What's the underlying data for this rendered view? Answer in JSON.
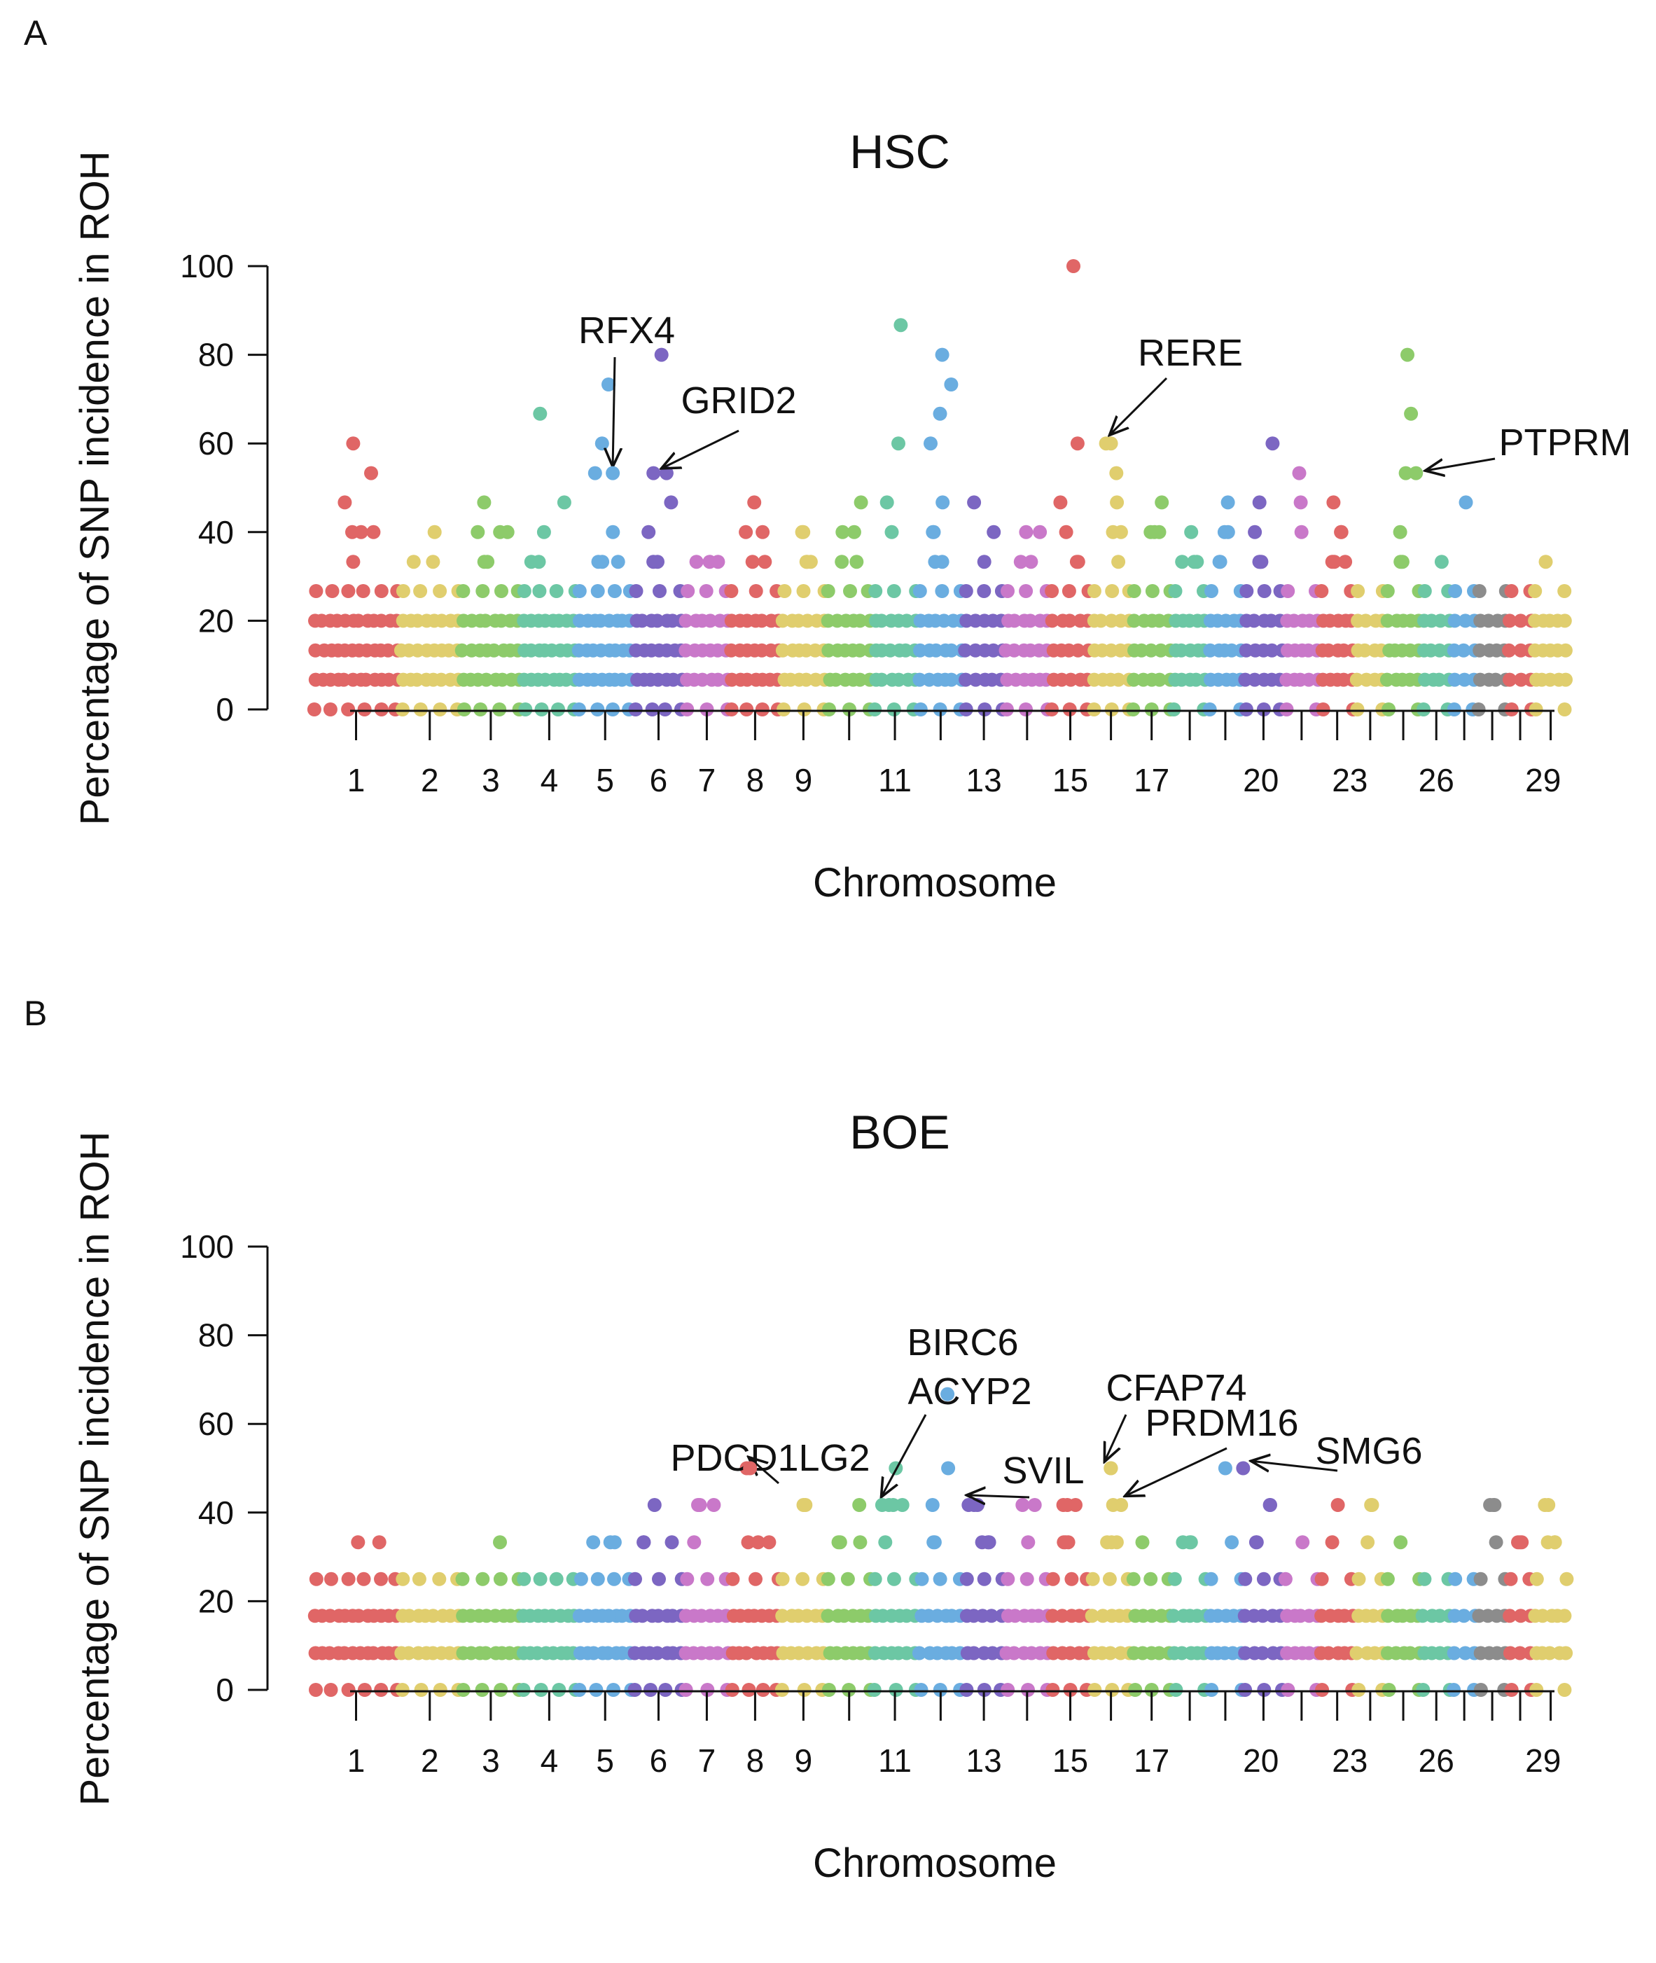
{
  "figure": {
    "panels": [
      "A",
      "B"
    ]
  },
  "chart_data": [
    {
      "type": "scatter",
      "panel": "A",
      "title": "HSC",
      "xlabel": "Chromosome",
      "ylabel": "Percentage of SNP incidence in ROH",
      "ylim": [
        0,
        100
      ],
      "yticks": [
        0,
        20,
        40,
        60,
        80,
        100
      ],
      "xtick_labels": [
        "1",
        "2",
        "3",
        "4",
        "5",
        "6",
        "7",
        "8",
        "9",
        "11",
        "13",
        "15",
        "17",
        "20",
        "23",
        "26",
        "29"
      ],
      "levels": [
        0,
        6.7,
        13.3,
        20,
        26.7
      ],
      "chromosomes": [
        {
          "chr": 1,
          "color": "#E06666",
          "x": [
            0.3,
            2.0
          ],
          "extras": [
            60,
            53.3,
            46.7,
            40,
            33.3
          ]
        },
        {
          "chr": 2,
          "color": "#E0CE6E",
          "x": [
            2.0,
            3.2
          ],
          "extras": [
            40,
            33.3
          ]
        },
        {
          "chr": 3,
          "color": "#8DCB6A",
          "x": [
            3.2,
            4.4
          ],
          "extras": [
            46.7,
            40,
            33.3
          ]
        },
        {
          "chr": 4,
          "color": "#6CC7A4",
          "x": [
            4.4,
            5.5
          ],
          "extras": [
            66.7,
            46.7,
            40,
            33.3
          ]
        },
        {
          "chr": 5,
          "color": "#6AADE0",
          "x": [
            5.5,
            6.6
          ],
          "extras": [
            73.3,
            60,
            53.3,
            40,
            33.3
          ]
        },
        {
          "chr": 6,
          "color": "#7C66C2",
          "x": [
            6.6,
            7.6
          ],
          "extras": [
            80,
            53.3,
            46.7,
            40,
            33.3
          ]
        },
        {
          "chr": 7,
          "color": "#C978C9",
          "x": [
            7.6,
            8.5
          ],
          "extras": [
            33.3
          ]
        },
        {
          "chr": 8,
          "color": "#E06666",
          "x": [
            8.5,
            9.5
          ],
          "extras": [
            46.7,
            40,
            33.3
          ]
        },
        {
          "chr": 9,
          "color": "#E0CE6E",
          "x": [
            9.5,
            10.4
          ],
          "extras": [
            40,
            33.3
          ]
        },
        {
          "chr": 10,
          "color": "#8DCB6A",
          "x": [
            10.4,
            11.3
          ],
          "extras": [
            46.7,
            40,
            33.3
          ]
        },
        {
          "chr": 11,
          "color": "#6CC7A4",
          "x": [
            11.3,
            12.2
          ],
          "extras": [
            86.7,
            60,
            46.7,
            40
          ]
        },
        {
          "chr": 12,
          "color": "#6AADE0",
          "x": [
            12.2,
            13.1
          ],
          "extras": [
            80,
            73.3,
            66.7,
            60,
            46.7,
            40,
            33.3
          ]
        },
        {
          "chr": 13,
          "color": "#7C66C2",
          "x": [
            13.1,
            13.9
          ],
          "extras": [
            46.7,
            40,
            33.3
          ]
        },
        {
          "chr": 14,
          "color": "#C978C9",
          "x": [
            13.9,
            14.8
          ],
          "extras": [
            40,
            33.3
          ]
        },
        {
          "chr": 15,
          "color": "#E06666",
          "x": [
            14.8,
            15.6
          ],
          "extras": [
            100,
            60,
            46.7,
            40,
            33.3
          ]
        },
        {
          "chr": 16,
          "color": "#E0CE6E",
          "x": [
            15.6,
            16.4
          ],
          "extras": [
            60,
            53.3,
            46.7,
            40,
            33.3
          ]
        },
        {
          "chr": 17,
          "color": "#8DCB6A",
          "x": [
            16.4,
            17.2
          ],
          "extras": [
            46.7,
            40
          ]
        },
        {
          "chr": 18,
          "color": "#6CC7A4",
          "x": [
            17.2,
            17.9
          ],
          "extras": [
            40,
            33.3
          ]
        },
        {
          "chr": 19,
          "color": "#6AADE0",
          "x": [
            17.9,
            18.6
          ],
          "extras": [
            46.7,
            40,
            33.3
          ]
        },
        {
          "chr": 20,
          "color": "#7C66C2",
          "x": [
            18.6,
            19.4
          ],
          "extras": [
            60,
            46.7,
            40,
            33.3
          ]
        },
        {
          "chr": 21,
          "color": "#C978C9",
          "x": [
            19.4,
            20.1
          ],
          "extras": [
            53.3,
            46.7,
            40
          ]
        },
        {
          "chr": 22,
          "color": "#E06666",
          "x": [
            20.1,
            20.8
          ],
          "extras": [
            46.7,
            40,
            33.3
          ]
        },
        {
          "chr": 23,
          "color": "#E0CE6E",
          "x": [
            20.8,
            21.4
          ],
          "extras": []
        },
        {
          "chr": 24,
          "color": "#8DCB6A",
          "x": [
            21.4,
            22.1
          ],
          "extras": [
            80,
            66.7,
            53.3,
            40,
            33.3
          ]
        },
        {
          "chr": 25,
          "color": "#6CC7A4",
          "x": [
            22.1,
            22.7
          ],
          "extras": [
            33.3
          ]
        },
        {
          "chr": 26,
          "color": "#6AADE0",
          "x": [
            22.7,
            23.2
          ],
          "extras": [
            46.7
          ]
        },
        {
          "chr": 27,
          "color": "#8C8C8C",
          "x": [
            23.2,
            23.8
          ],
          "extras": []
        },
        {
          "chr": 28,
          "color": "#E06666",
          "x": [
            23.8,
            24.3
          ],
          "extras": []
        },
        {
          "chr": 29,
          "color": "#E0CE6E",
          "x": [
            24.3,
            25.0
          ],
          "extras": [
            33.3
          ]
        }
      ],
      "annotations": [
        {
          "label": "RFX4",
          "x": 6.2,
          "y": 53.3
        },
        {
          "label": "GRID2",
          "x": 7.0,
          "y": 53.3
        },
        {
          "label": "RERE",
          "x": 16.0,
          "y": 60
        },
        {
          "label": "PTPRM",
          "x": 22.0,
          "y": 53.3
        }
      ]
    },
    {
      "type": "scatter",
      "panel": "B",
      "title": "BOE",
      "xlabel": "Chromosome",
      "ylabel": "Percentage of SNP incidence in ROH",
      "ylim": [
        0,
        100
      ],
      "yticks": [
        0,
        20,
        40,
        60,
        80,
        100
      ],
      "xtick_labels": [
        "1",
        "2",
        "3",
        "4",
        "5",
        "6",
        "7",
        "8",
        "9",
        "11",
        "13",
        "15",
        "17",
        "20",
        "23",
        "26",
        "29"
      ],
      "levels": [
        0,
        8.3,
        16.7,
        25
      ],
      "chromosomes": [
        {
          "chr": 1,
          "color": "#E06666",
          "x": [
            0.3,
            2.0
          ],
          "extras": [
            33.3
          ]
        },
        {
          "chr": 2,
          "color": "#E0CE6E",
          "x": [
            2.0,
            3.2
          ],
          "extras": []
        },
        {
          "chr": 3,
          "color": "#8DCB6A",
          "x": [
            3.2,
            4.4
          ],
          "extras": [
            33.3
          ]
        },
        {
          "chr": 4,
          "color": "#6CC7A4",
          "x": [
            4.4,
            5.5
          ],
          "extras": []
        },
        {
          "chr": 5,
          "color": "#6AADE0",
          "x": [
            5.5,
            6.6
          ],
          "extras": [
            33.3
          ]
        },
        {
          "chr": 6,
          "color": "#7C66C2",
          "x": [
            6.6,
            7.6
          ],
          "extras": [
            41.7,
            33.3
          ]
        },
        {
          "chr": 7,
          "color": "#C978C9",
          "x": [
            7.6,
            8.5
          ],
          "extras": [
            41.7,
            33.3
          ]
        },
        {
          "chr": 8,
          "color": "#E06666",
          "x": [
            8.5,
            9.5
          ],
          "extras": [
            50,
            33.3
          ]
        },
        {
          "chr": 9,
          "color": "#E0CE6E",
          "x": [
            9.5,
            10.4
          ],
          "extras": [
            41.7
          ]
        },
        {
          "chr": 10,
          "color": "#8DCB6A",
          "x": [
            10.4,
            11.3
          ],
          "extras": [
            41.7,
            33.3
          ]
        },
        {
          "chr": 11,
          "color": "#6CC7A4",
          "x": [
            11.3,
            12.2
          ],
          "extras": [
            50,
            41.7,
            33.3
          ]
        },
        {
          "chr": 12,
          "color": "#6AADE0",
          "x": [
            12.2,
            13.1
          ],
          "extras": [
            66.7,
            50,
            41.7,
            33.3
          ]
        },
        {
          "chr": 13,
          "color": "#7C66C2",
          "x": [
            13.1,
            13.9
          ],
          "extras": [
            41.7,
            33.3
          ]
        },
        {
          "chr": 14,
          "color": "#C978C9",
          "x": [
            13.9,
            14.8
          ],
          "extras": [
            41.7,
            33.3
          ]
        },
        {
          "chr": 15,
          "color": "#E06666",
          "x": [
            14.8,
            15.6
          ],
          "extras": [
            41.7,
            33.3
          ]
        },
        {
          "chr": 16,
          "color": "#E0CE6E",
          "x": [
            15.6,
            16.4
          ],
          "extras": [
            50,
            41.7,
            33.3
          ]
        },
        {
          "chr": 17,
          "color": "#8DCB6A",
          "x": [
            16.4,
            17.2
          ],
          "extras": [
            33.3
          ]
        },
        {
          "chr": 18,
          "color": "#6CC7A4",
          "x": [
            17.2,
            17.9
          ],
          "extras": [
            33.3
          ]
        },
        {
          "chr": 19,
          "color": "#6AADE0",
          "x": [
            17.9,
            18.6
          ],
          "extras": [
            50,
            33.3
          ]
        },
        {
          "chr": 20,
          "color": "#7C66C2",
          "x": [
            18.6,
            19.4
          ],
          "extras": [
            41.7,
            33.3
          ]
        },
        {
          "chr": 21,
          "color": "#C978C9",
          "x": [
            19.4,
            20.1
          ],
          "extras": [
            33.3
          ]
        },
        {
          "chr": 22,
          "color": "#E06666",
          "x": [
            20.1,
            20.8
          ],
          "extras": [
            41.7,
            33.3
          ]
        },
        {
          "chr": 23,
          "color": "#E0CE6E",
          "x": [
            20.8,
            21.4
          ],
          "extras": [
            41.7,
            33.3
          ]
        },
        {
          "chr": 24,
          "color": "#8DCB6A",
          "x": [
            21.4,
            22.1
          ],
          "extras": [
            33.3
          ]
        },
        {
          "chr": 25,
          "color": "#6CC7A4",
          "x": [
            22.1,
            22.7
          ],
          "extras": []
        },
        {
          "chr": 26,
          "color": "#6AADE0",
          "x": [
            22.7,
            23.2
          ],
          "extras": []
        },
        {
          "chr": 27,
          "color": "#8C8C8C",
          "x": [
            23.2,
            23.8
          ],
          "extras": [
            41.7,
            33.3
          ]
        },
        {
          "chr": 28,
          "color": "#E06666",
          "x": [
            23.8,
            24.3
          ],
          "extras": [
            33.3
          ]
        },
        {
          "chr": 29,
          "color": "#E0CE6E",
          "x": [
            24.3,
            25.0
          ],
          "extras": [
            41.7,
            33.3
          ]
        }
      ],
      "annotations": [
        {
          "label": "PDCD1LG2",
          "x": 8.9,
          "y": 50
        },
        {
          "label": "BIRC6",
          "x": null,
          "y": null
        },
        {
          "label": "ACYP2",
          "x": 11.5,
          "y": 41.7
        },
        {
          "label": "SVIL",
          "x": 13.2,
          "y": 41.7
        },
        {
          "label": "CFAP74",
          "x": 16.0,
          "y": 50
        },
        {
          "label": "PRDM16",
          "x": 16.2,
          "y": 41.7
        },
        {
          "label": "SMG6",
          "x": 18.6,
          "y": 50
        }
      ]
    }
  ]
}
